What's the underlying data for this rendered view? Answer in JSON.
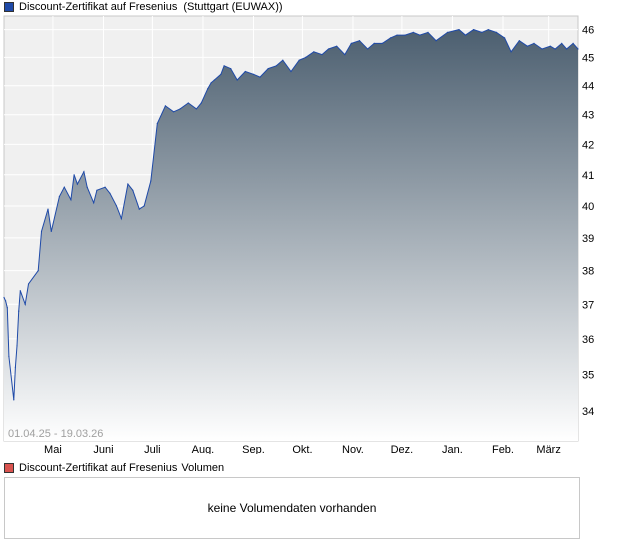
{
  "header": {
    "series_name": "Discount-Zertifikat auf Fresenius",
    "exchange": "(Stuttgart (EUWAX))"
  },
  "volume_panel": {
    "series_name": "Discount-Zertifikat auf Fresenius",
    "label": "Volumen",
    "message": "keine Volumendaten vorhanden"
  },
  "colors": {
    "line": "#1f4aa8",
    "fill_top": "#4c5f70",
    "fill_bottom": "#ffffff",
    "volume_swatch": "#d9534f",
    "grid": "#ffffff",
    "plot_bg": "#f0f0f0"
  },
  "chart_data": {
    "type": "area",
    "date_range_label": "01.04.25 - 19.03.26",
    "x_tick_labels": [
      "Mai",
      "Juni",
      "Juli",
      "Aug.",
      "Sep.",
      "Okt.",
      "Nov.",
      "Dez.",
      "Jan.",
      "Feb.",
      "März"
    ],
    "y_tick_labels": [
      "34",
      "35",
      "36",
      "37",
      "38",
      "39",
      "40",
      "41",
      "42",
      "43",
      "44",
      "45",
      "46"
    ],
    "ylim": [
      33.2,
      46.5
    ],
    "log_scale": true,
    "grid": true,
    "x": [
      "2025-04-01",
      "2025-04-02",
      "2025-04-03",
      "2025-04-04",
      "2025-04-07",
      "2025-04-08",
      "2025-04-09",
      "2025-04-10",
      "2025-04-11",
      "2025-04-14",
      "2025-04-16",
      "2025-04-22",
      "2025-04-24",
      "2025-04-28",
      "2025-04-30",
      "2025-05-05",
      "2025-05-08",
      "2025-05-12",
      "2025-05-14",
      "2025-05-16",
      "2025-05-20",
      "2025-05-22",
      "2025-05-26",
      "2025-05-28",
      "2025-06-02",
      "2025-06-05",
      "2025-06-09",
      "2025-06-12",
      "2025-06-16",
      "2025-06-19",
      "2025-06-23",
      "2025-06-26",
      "2025-06-30",
      "2025-07-04",
      "2025-07-09",
      "2025-07-14",
      "2025-07-18",
      "2025-07-23",
      "2025-07-28",
      "2025-07-31",
      "2025-08-04",
      "2025-08-06",
      "2025-08-08",
      "2025-08-12",
      "2025-08-14",
      "2025-08-18",
      "2025-08-22",
      "2025-08-27",
      "2025-09-01",
      "2025-09-05",
      "2025-09-10",
      "2025-09-15",
      "2025-09-19",
      "2025-09-24",
      "2025-09-29",
      "2025-10-03",
      "2025-10-08",
      "2025-10-13",
      "2025-10-17",
      "2025-10-22",
      "2025-10-27",
      "2025-10-31",
      "2025-11-05",
      "2025-11-10",
      "2025-11-14",
      "2025-11-19",
      "2025-11-24",
      "2025-11-28",
      "2025-12-03",
      "2025-12-08",
      "2025-12-12",
      "2025-12-17",
      "2025-12-22",
      "2025-12-29",
      "2026-01-05",
      "2026-01-09",
      "2026-01-14",
      "2026-01-19",
      "2026-01-23",
      "2026-01-28",
      "2026-02-02",
      "2026-02-06",
      "2026-02-11",
      "2026-02-16",
      "2026-02-20",
      "2026-02-25",
      "2026-03-02",
      "2026-03-05",
      "2026-03-09",
      "2026-03-12",
      "2026-03-16",
      "2026-03-19"
    ],
    "values": [
      37.2,
      37.1,
      36.9,
      35.5,
      34.3,
      35.2,
      35.8,
      36.8,
      37.4,
      37.0,
      37.6,
      38.0,
      39.2,
      39.9,
      39.2,
      40.3,
      40.6,
      40.2,
      41.0,
      40.7,
      41.1,
      40.6,
      40.1,
      40.5,
      40.6,
      40.4,
      40.0,
      39.6,
      40.7,
      40.5,
      39.9,
      40.0,
      40.8,
      42.7,
      43.3,
      43.1,
      43.2,
      43.4,
      43.2,
      43.4,
      43.9,
      44.1,
      44.2,
      44.4,
      44.7,
      44.6,
      44.2,
      44.5,
      44.4,
      44.3,
      44.6,
      44.7,
      44.9,
      44.5,
      44.9,
      45.0,
      45.2,
      45.1,
      45.3,
      45.4,
      45.1,
      45.5,
      45.6,
      45.3,
      45.5,
      45.5,
      45.7,
      45.8,
      45.8,
      45.9,
      45.8,
      45.9,
      45.6,
      45.9,
      46.0,
      45.8,
      46.0,
      45.9,
      46.0,
      45.9,
      45.7,
      45.2,
      45.6,
      45.4,
      45.5,
      45.3,
      45.4,
      45.3,
      45.5,
      45.3,
      45.5,
      45.3
    ]
  }
}
